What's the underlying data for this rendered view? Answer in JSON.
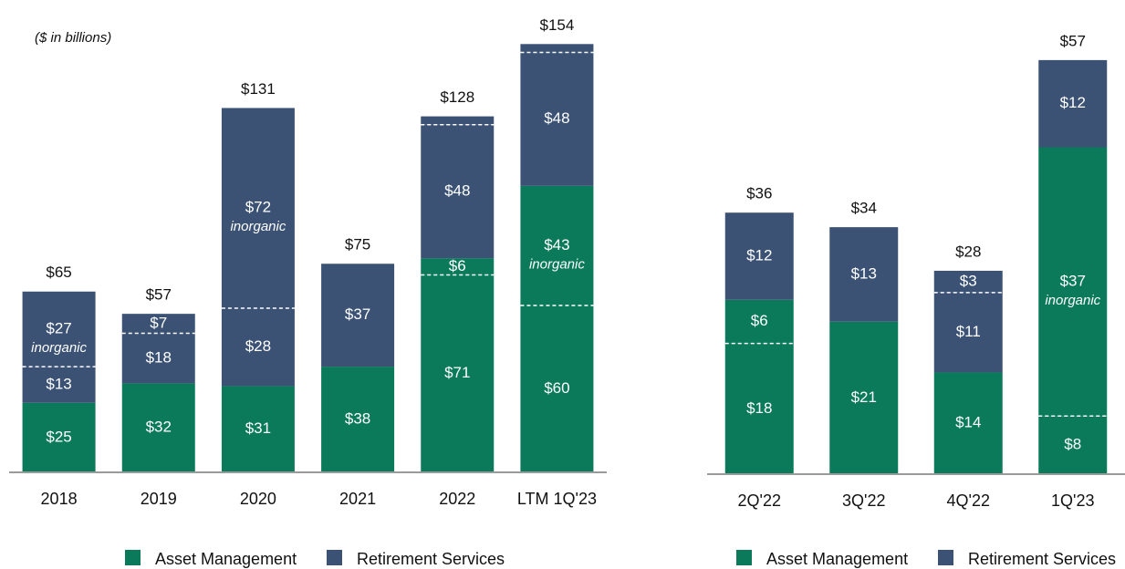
{
  "chart_data": [
    {
      "type": "bar",
      "stacked": true,
      "subtitle": "($ in billions)",
      "categories": [
        "2018",
        "2019",
        "2020",
        "2021",
        "2022",
        "LTM 1Q'23"
      ],
      "ylim": [
        0,
        160
      ],
      "series": [
        {
          "color": "#0a7a5a",
          "values": [
            25,
            32,
            31,
            38,
            71,
            60
          ],
          "value_labels": [
            "$25",
            "$32",
            "$31",
            "$38",
            "$71",
            "$60"
          ]
        },
        {
          "color": "#0a7a5a",
          "values": [
            null,
            null,
            null,
            null,
            6,
            43
          ],
          "value_labels": [
            null,
            null,
            null,
            null,
            "$6",
            "$43"
          ],
          "notes": [
            null,
            null,
            null,
            null,
            null,
            "inorganic"
          ]
        },
        {
          "color": "#3b5275",
          "values": [
            13,
            18,
            28,
            37,
            48,
            48
          ],
          "value_labels": [
            "$13",
            "$18",
            "$28",
            "$37",
            "$48",
            "$48"
          ]
        },
        {
          "color": "#3b5275",
          "values": [
            27,
            7,
            72,
            null,
            3,
            3
          ],
          "value_labels": [
            "$27",
            "$7",
            "$72",
            null,
            null,
            null
          ],
          "notes": [
            "inorganic",
            null,
            "inorganic",
            null,
            null,
            null
          ]
        }
      ],
      "totals": [
        65,
        57,
        131,
        75,
        128,
        154
      ],
      "total_labels": [
        "$65",
        "$57",
        "$131",
        "$75",
        "$128",
        "$154"
      ],
      "legend": [
        {
          "name": "Asset Management",
          "color": "#0a7a5a"
        },
        {
          "name": "Retirement Services",
          "color": "#3b5275"
        }
      ]
    },
    {
      "type": "bar",
      "stacked": true,
      "categories": [
        "2Q'22",
        "3Q'22",
        "4Q'22",
        "1Q'23"
      ],
      "ylim": [
        0,
        60
      ],
      "series": [
        {
          "color": "#0a7a5a",
          "values": [
            18,
            21,
            14,
            8
          ],
          "value_labels": [
            "$18",
            "$21",
            "$14",
            "$8"
          ]
        },
        {
          "color": "#0a7a5a",
          "values": [
            6,
            null,
            null,
            37
          ],
          "value_labels": [
            "$6",
            null,
            null,
            "$37"
          ],
          "notes": [
            null,
            null,
            null,
            "inorganic"
          ]
        },
        {
          "color": "#3b5275",
          "values": [
            12,
            13,
            11,
            12
          ],
          "value_labels": [
            "$12",
            "$13",
            "$11",
            "$12"
          ]
        },
        {
          "color": "#3b5275",
          "values": [
            null,
            null,
            3,
            null
          ],
          "value_labels": [
            null,
            null,
            "$3",
            null
          ]
        }
      ],
      "totals": [
        36,
        34,
        28,
        57
      ],
      "total_labels": [
        "$36",
        "$34",
        "$28",
        "$57"
      ],
      "legend": [
        {
          "name": "Asset Management",
          "color": "#0a7a5a"
        },
        {
          "name": "Retirement Services",
          "color": "#3b5275"
        }
      ]
    }
  ]
}
